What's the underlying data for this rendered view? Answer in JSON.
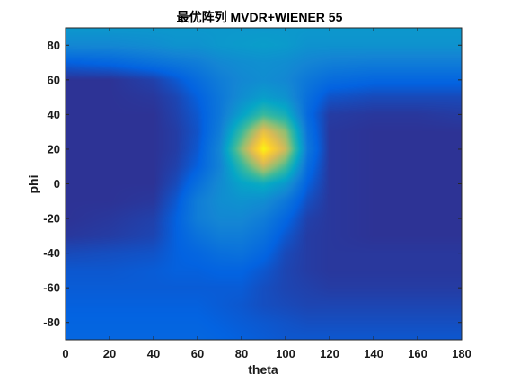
{
  "chart_data": {
    "type": "heatmap",
    "title": "最优阵列 MVDR+WIENER 55",
    "xlabel": "theta",
    "ylabel": "phi",
    "xlim": [
      0,
      180
    ],
    "ylim": [
      -90,
      90
    ],
    "x_ticks": [
      "0",
      "20",
      "40",
      "60",
      "80",
      "100",
      "120",
      "140",
      "160",
      "180"
    ],
    "y_ticks": [
      "80",
      "60",
      "40",
      "20",
      "0",
      "-20",
      "-40",
      "-60",
      "-80"
    ],
    "grid": false,
    "colormap": "parula",
    "colormap_stops": [
      "#352a87",
      "#0363e1",
      "#1485d4",
      "#06a7c6",
      "#38b99e",
      "#92bf73",
      "#d9ba56",
      "#fcce2e",
      "#f9fb0e"
    ],
    "peak": {
      "theta": 92,
      "phi": 22
    },
    "intensity_grid": {
      "theta": [
        0,
        20,
        40,
        50,
        60,
        70,
        80,
        90,
        100,
        110,
        120,
        140,
        160,
        180
      ],
      "phi": [
        90,
        80,
        70,
        60,
        50,
        40,
        30,
        20,
        10,
        0,
        -10,
        -20,
        -30,
        -40,
        -50,
        -60,
        -70,
        -80,
        -90
      ],
      "values": [
        [
          0.32,
          0.32,
          0.32,
          0.32,
          0.32,
          0.32,
          0.32,
          0.32,
          0.32,
          0.32,
          0.32,
          0.32,
          0.32,
          0.32
        ],
        [
          0.26,
          0.26,
          0.28,
          0.3,
          0.3,
          0.32,
          0.33,
          0.34,
          0.33,
          0.3,
          0.3,
          0.3,
          0.3,
          0.3
        ],
        [
          0.12,
          0.14,
          0.18,
          0.2,
          0.22,
          0.26,
          0.28,
          0.29,
          0.28,
          0.25,
          0.23,
          0.22,
          0.22,
          0.22
        ],
        [
          0.02,
          0.02,
          0.05,
          0.1,
          0.16,
          0.22,
          0.26,
          0.28,
          0.26,
          0.2,
          0.16,
          0.14,
          0.14,
          0.14
        ],
        [
          0.02,
          0.02,
          0.03,
          0.06,
          0.12,
          0.2,
          0.28,
          0.34,
          0.3,
          0.17,
          0.09,
          0.07,
          0.07,
          0.07
        ],
        [
          0.02,
          0.02,
          0.02,
          0.05,
          0.1,
          0.2,
          0.35,
          0.5,
          0.42,
          0.15,
          0.04,
          0.03,
          0.03,
          0.04
        ],
        [
          0.02,
          0.02,
          0.02,
          0.04,
          0.09,
          0.22,
          0.5,
          0.8,
          0.62,
          0.18,
          0.03,
          0.02,
          0.02,
          0.02
        ],
        [
          0.02,
          0.02,
          0.02,
          0.04,
          0.1,
          0.25,
          0.62,
          0.98,
          0.72,
          0.2,
          0.03,
          0.02,
          0.02,
          0.02
        ],
        [
          0.02,
          0.02,
          0.02,
          0.05,
          0.12,
          0.24,
          0.48,
          0.72,
          0.52,
          0.16,
          0.03,
          0.02,
          0.02,
          0.02
        ],
        [
          0.02,
          0.02,
          0.02,
          0.07,
          0.17,
          0.27,
          0.36,
          0.4,
          0.32,
          0.12,
          0.03,
          0.02,
          0.02,
          0.02
        ],
        [
          0.02,
          0.02,
          0.03,
          0.1,
          0.22,
          0.28,
          0.3,
          0.28,
          0.2,
          0.08,
          0.03,
          0.02,
          0.02,
          0.02
        ],
        [
          0.02,
          0.03,
          0.05,
          0.12,
          0.22,
          0.26,
          0.26,
          0.22,
          0.14,
          0.05,
          0.03,
          0.02,
          0.02,
          0.02
        ],
        [
          0.03,
          0.04,
          0.06,
          0.12,
          0.18,
          0.22,
          0.22,
          0.18,
          0.1,
          0.04,
          0.03,
          0.02,
          0.02,
          0.02
        ],
        [
          0.07,
          0.08,
          0.09,
          0.12,
          0.14,
          0.17,
          0.18,
          0.14,
          0.07,
          0.04,
          0.03,
          0.03,
          0.03,
          0.03
        ],
        [
          0.1,
          0.1,
          0.11,
          0.12,
          0.12,
          0.13,
          0.13,
          0.1,
          0.06,
          0.04,
          0.03,
          0.03,
          0.03,
          0.03
        ],
        [
          0.11,
          0.11,
          0.11,
          0.11,
          0.11,
          0.11,
          0.11,
          0.08,
          0.06,
          0.05,
          0.04,
          0.04,
          0.04,
          0.04
        ],
        [
          0.12,
          0.12,
          0.12,
          0.12,
          0.12,
          0.11,
          0.1,
          0.08,
          0.07,
          0.06,
          0.06,
          0.06,
          0.06,
          0.06
        ],
        [
          0.13,
          0.13,
          0.13,
          0.13,
          0.13,
          0.12,
          0.11,
          0.1,
          0.09,
          0.08,
          0.08,
          0.08,
          0.08,
          0.08
        ],
        [
          0.14,
          0.14,
          0.14,
          0.14,
          0.14,
          0.13,
          0.12,
          0.11,
          0.1,
          0.1,
          0.1,
          0.1,
          0.1,
          0.1
        ]
      ]
    }
  }
}
